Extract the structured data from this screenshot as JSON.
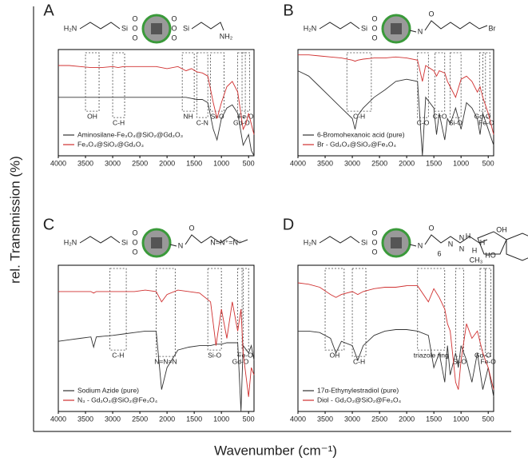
{
  "ylabel": "rel. Transmission (%)",
  "xlabel": "Wavenumber (cm⁻¹)",
  "chart_data": [
    {
      "type": "line",
      "panel": "A",
      "structure": [
        "H₂N",
        "Si",
        "O",
        "O",
        "O",
        "O",
        "O",
        "O",
        "Si",
        "NH₂"
      ],
      "x": [
        4000,
        3800,
        3600,
        3400,
        3200,
        3000,
        2900,
        2800,
        2600,
        2400,
        2200,
        2000,
        1800,
        1650,
        1550,
        1450,
        1350,
        1250,
        1150,
        1080,
        1000,
        900,
        800,
        700,
        600,
        550,
        500,
        450,
        400
      ],
      "xlim": [
        4000,
        400
      ],
      "ylim": [
        0,
        100
      ],
      "xticks": [
        4000,
        3500,
        3000,
        2500,
        2000,
        1500,
        1000,
        500
      ],
      "series": [
        {
          "name": "Aminosilane-Fe₃O₄@SiO₂@Gd₂O₃",
          "color": "#333333",
          "values": [
            55,
            55,
            55,
            55,
            55,
            55,
            55,
            55,
            55,
            55,
            55,
            55,
            55,
            55,
            54,
            53,
            53,
            50,
            25,
            15,
            35,
            45,
            48,
            40,
            10,
            15,
            20,
            5,
            0
          ]
        },
        {
          "name": "Fe₃O₄@SiO₂@Gd₂O₃",
          "color": "#d03030",
          "values": [
            85,
            85,
            84,
            83,
            83,
            84,
            83,
            84,
            84,
            84,
            84,
            82,
            84,
            80,
            82,
            79,
            78,
            75,
            50,
            35,
            50,
            65,
            70,
            60,
            25,
            30,
            40,
            30,
            20
          ]
        }
      ],
      "annotations": [
        {
          "text": "OH",
          "x": [
            3500,
            3250
          ]
        },
        {
          "text": "C-H",
          "x": [
            3000,
            2780
          ]
        },
        {
          "text": "NH",
          "x": [
            1720,
            1500
          ]
        },
        {
          "text": "C-N",
          "x": [
            1450,
            1250
          ]
        },
        {
          "text": "Si-O",
          "x": [
            1200,
            950
          ]
        },
        {
          "text": "Gd-O",
          "x": [
            700,
            560
          ]
        },
        {
          "text": "Fe-O",
          "x": [
            620,
            480
          ]
        }
      ]
    },
    {
      "type": "line",
      "panel": "B",
      "structure": [
        "H₂N",
        "Si",
        "O",
        "O",
        "O",
        "N",
        "O",
        "Br"
      ],
      "x": [
        4000,
        3800,
        3600,
        3400,
        3200,
        3000,
        2950,
        2900,
        2800,
        2600,
        2400,
        2200,
        2000,
        1800,
        1710,
        1650,
        1500,
        1450,
        1400,
        1300,
        1250,
        1200,
        1100,
        1000,
        900,
        800,
        700,
        650,
        600,
        500,
        400
      ],
      "xlim": [
        4000,
        400
      ],
      "ylim": [
        0,
        100
      ],
      "xticks": [
        4000,
        3500,
        3000,
        2500,
        2000,
        1500,
        1000,
        500
      ],
      "series": [
        {
          "name": "6-Bromohexanoic acid (pure)",
          "color": "#333333",
          "values": [
            80,
            75,
            65,
            55,
            45,
            35,
            25,
            38,
            45,
            55,
            62,
            70,
            72,
            70,
            0,
            55,
            45,
            20,
            40,
            15,
            35,
            30,
            45,
            25,
            50,
            45,
            35,
            20,
            40,
            25,
            10
          ]
        },
        {
          "name": "Br - Gd₂O₃@SiO₂@Fe₃O₄",
          "color": "#d03030",
          "values": [
            95,
            95,
            94,
            93,
            92,
            90,
            89,
            90,
            91,
            92,
            92,
            93,
            92,
            90,
            70,
            85,
            80,
            75,
            80,
            78,
            70,
            65,
            55,
            72,
            75,
            70,
            60,
            65,
            55,
            40,
            20
          ]
        }
      ],
      "annotations": [
        {
          "text": "C-H",
          "x": [
            3100,
            2650
          ]
        },
        {
          "text": "C-O",
          "x": [
            1800,
            1600
          ]
        },
        {
          "text": "C=O",
          "x": [
            1480,
            1300
          ]
        },
        {
          "text": "Si-O",
          "x": [
            1200,
            1000
          ]
        },
        {
          "text": "Gd-O",
          "x": [
            660,
            550
          ]
        },
        {
          "text": "Fe-O",
          "x": [
            600,
            470
          ]
        }
      ]
    },
    {
      "type": "line",
      "panel": "C",
      "structure": [
        "H₂N",
        "Si",
        "O",
        "O",
        "O",
        "N",
        "O",
        "N=N⁺=N⁻"
      ],
      "x": [
        4000,
        3800,
        3600,
        3400,
        3350,
        3300,
        3000,
        2800,
        2600,
        2400,
        2200,
        2100,
        2000,
        1800,
        1600,
        1400,
        1200,
        1100,
        1000,
        900,
        800,
        700,
        640,
        600,
        500,
        450,
        400
      ],
      "xlim": [
        4000,
        400
      ],
      "ylim": [
        0,
        100
      ],
      "xticks": [
        4000,
        3500,
        3000,
        2500,
        2000,
        1500,
        1000,
        500
      ],
      "series": [
        {
          "name": "Sodium Azide (pure)",
          "color": "#333333",
          "values": [
            48,
            49,
            50,
            51,
            44,
            51,
            52,
            53,
            54,
            55,
            55,
            15,
            30,
            42,
            44,
            45,
            45,
            46,
            46,
            47,
            47,
            47,
            0,
            45,
            40,
            45,
            35
          ]
        },
        {
          "name": "N₃ - Gd₂O₃@SiO₂@Fe₃O₄",
          "color": "#d03030",
          "values": [
            82,
            82,
            82,
            82,
            81,
            82,
            82,
            82,
            82,
            83,
            82,
            75,
            80,
            83,
            82,
            81,
            75,
            45,
            70,
            50,
            75,
            55,
            70,
            40,
            10,
            30,
            25
          ]
        }
      ],
      "annotations": [
        {
          "text": "C-H",
          "x": [
            3050,
            2750
          ]
        },
        {
          "text": "N=N=N",
          "x": [
            2200,
            1850
          ]
        },
        {
          "text": "Si-O",
          "x": [
            1250,
            1000
          ]
        },
        {
          "text": "Gd-O",
          "x": [
            700,
            600
          ]
        },
        {
          "text": "Fe-O",
          "x": [
            620,
            500
          ]
        }
      ]
    },
    {
      "type": "line",
      "panel": "D",
      "structure": [
        "H₂N",
        "Si",
        "O",
        "O",
        "O",
        "N",
        "O",
        "6",
        "N",
        "N",
        "N",
        "OH",
        "HO",
        "H",
        "H",
        "H",
        "CH₃"
      ],
      "x": [
        4000,
        3800,
        3600,
        3400,
        3300,
        3200,
        3000,
        2900,
        2800,
        2600,
        2400,
        2200,
        2000,
        1800,
        1600,
        1500,
        1400,
        1300,
        1250,
        1200,
        1100,
        1050,
        1000,
        900,
        800,
        700,
        600,
        500,
        400
      ],
      "xlim": [
        4000,
        400
      ],
      "ylim": [
        0,
        100
      ],
      "xticks": [
        4000,
        3500,
        3000,
        2500,
        2000,
        1500,
        1000,
        500
      ],
      "series": [
        {
          "name": "17α-Ethynylestradiol (pure)",
          "color": "#333333",
          "values": [
            55,
            55,
            54,
            50,
            40,
            48,
            45,
            35,
            45,
            52,
            55,
            56,
            56,
            55,
            52,
            30,
            40,
            20,
            45,
            25,
            40,
            30,
            45,
            35,
            20,
            40,
            15,
            30,
            10
          ]
        },
        {
          "name": "Diol - Gd₂O₃@SiO₂@Fe₃O₄",
          "color": "#d03030",
          "values": [
            88,
            87,
            85,
            80,
            78,
            80,
            82,
            80,
            82,
            84,
            85,
            85,
            86,
            86,
            75,
            84,
            78,
            70,
            60,
            55,
            20,
            15,
            35,
            60,
            50,
            55,
            40,
            30,
            15
          ]
        }
      ],
      "annotations": [
        {
          "text": "OH",
          "x": [
            3500,
            3150
          ]
        },
        {
          "text": "C-H",
          "x": [
            3000,
            2750
          ]
        },
        {
          "text": "triazole ring",
          "x": [
            1800,
            1300
          ]
        },
        {
          "text": "Si-O",
          "x": [
            1100,
            950
          ]
        },
        {
          "text": "Gd-O",
          "x": [
            650,
            550
          ]
        },
        {
          "text": "Fe-O",
          "x": [
            550,
            450
          ]
        }
      ]
    }
  ]
}
